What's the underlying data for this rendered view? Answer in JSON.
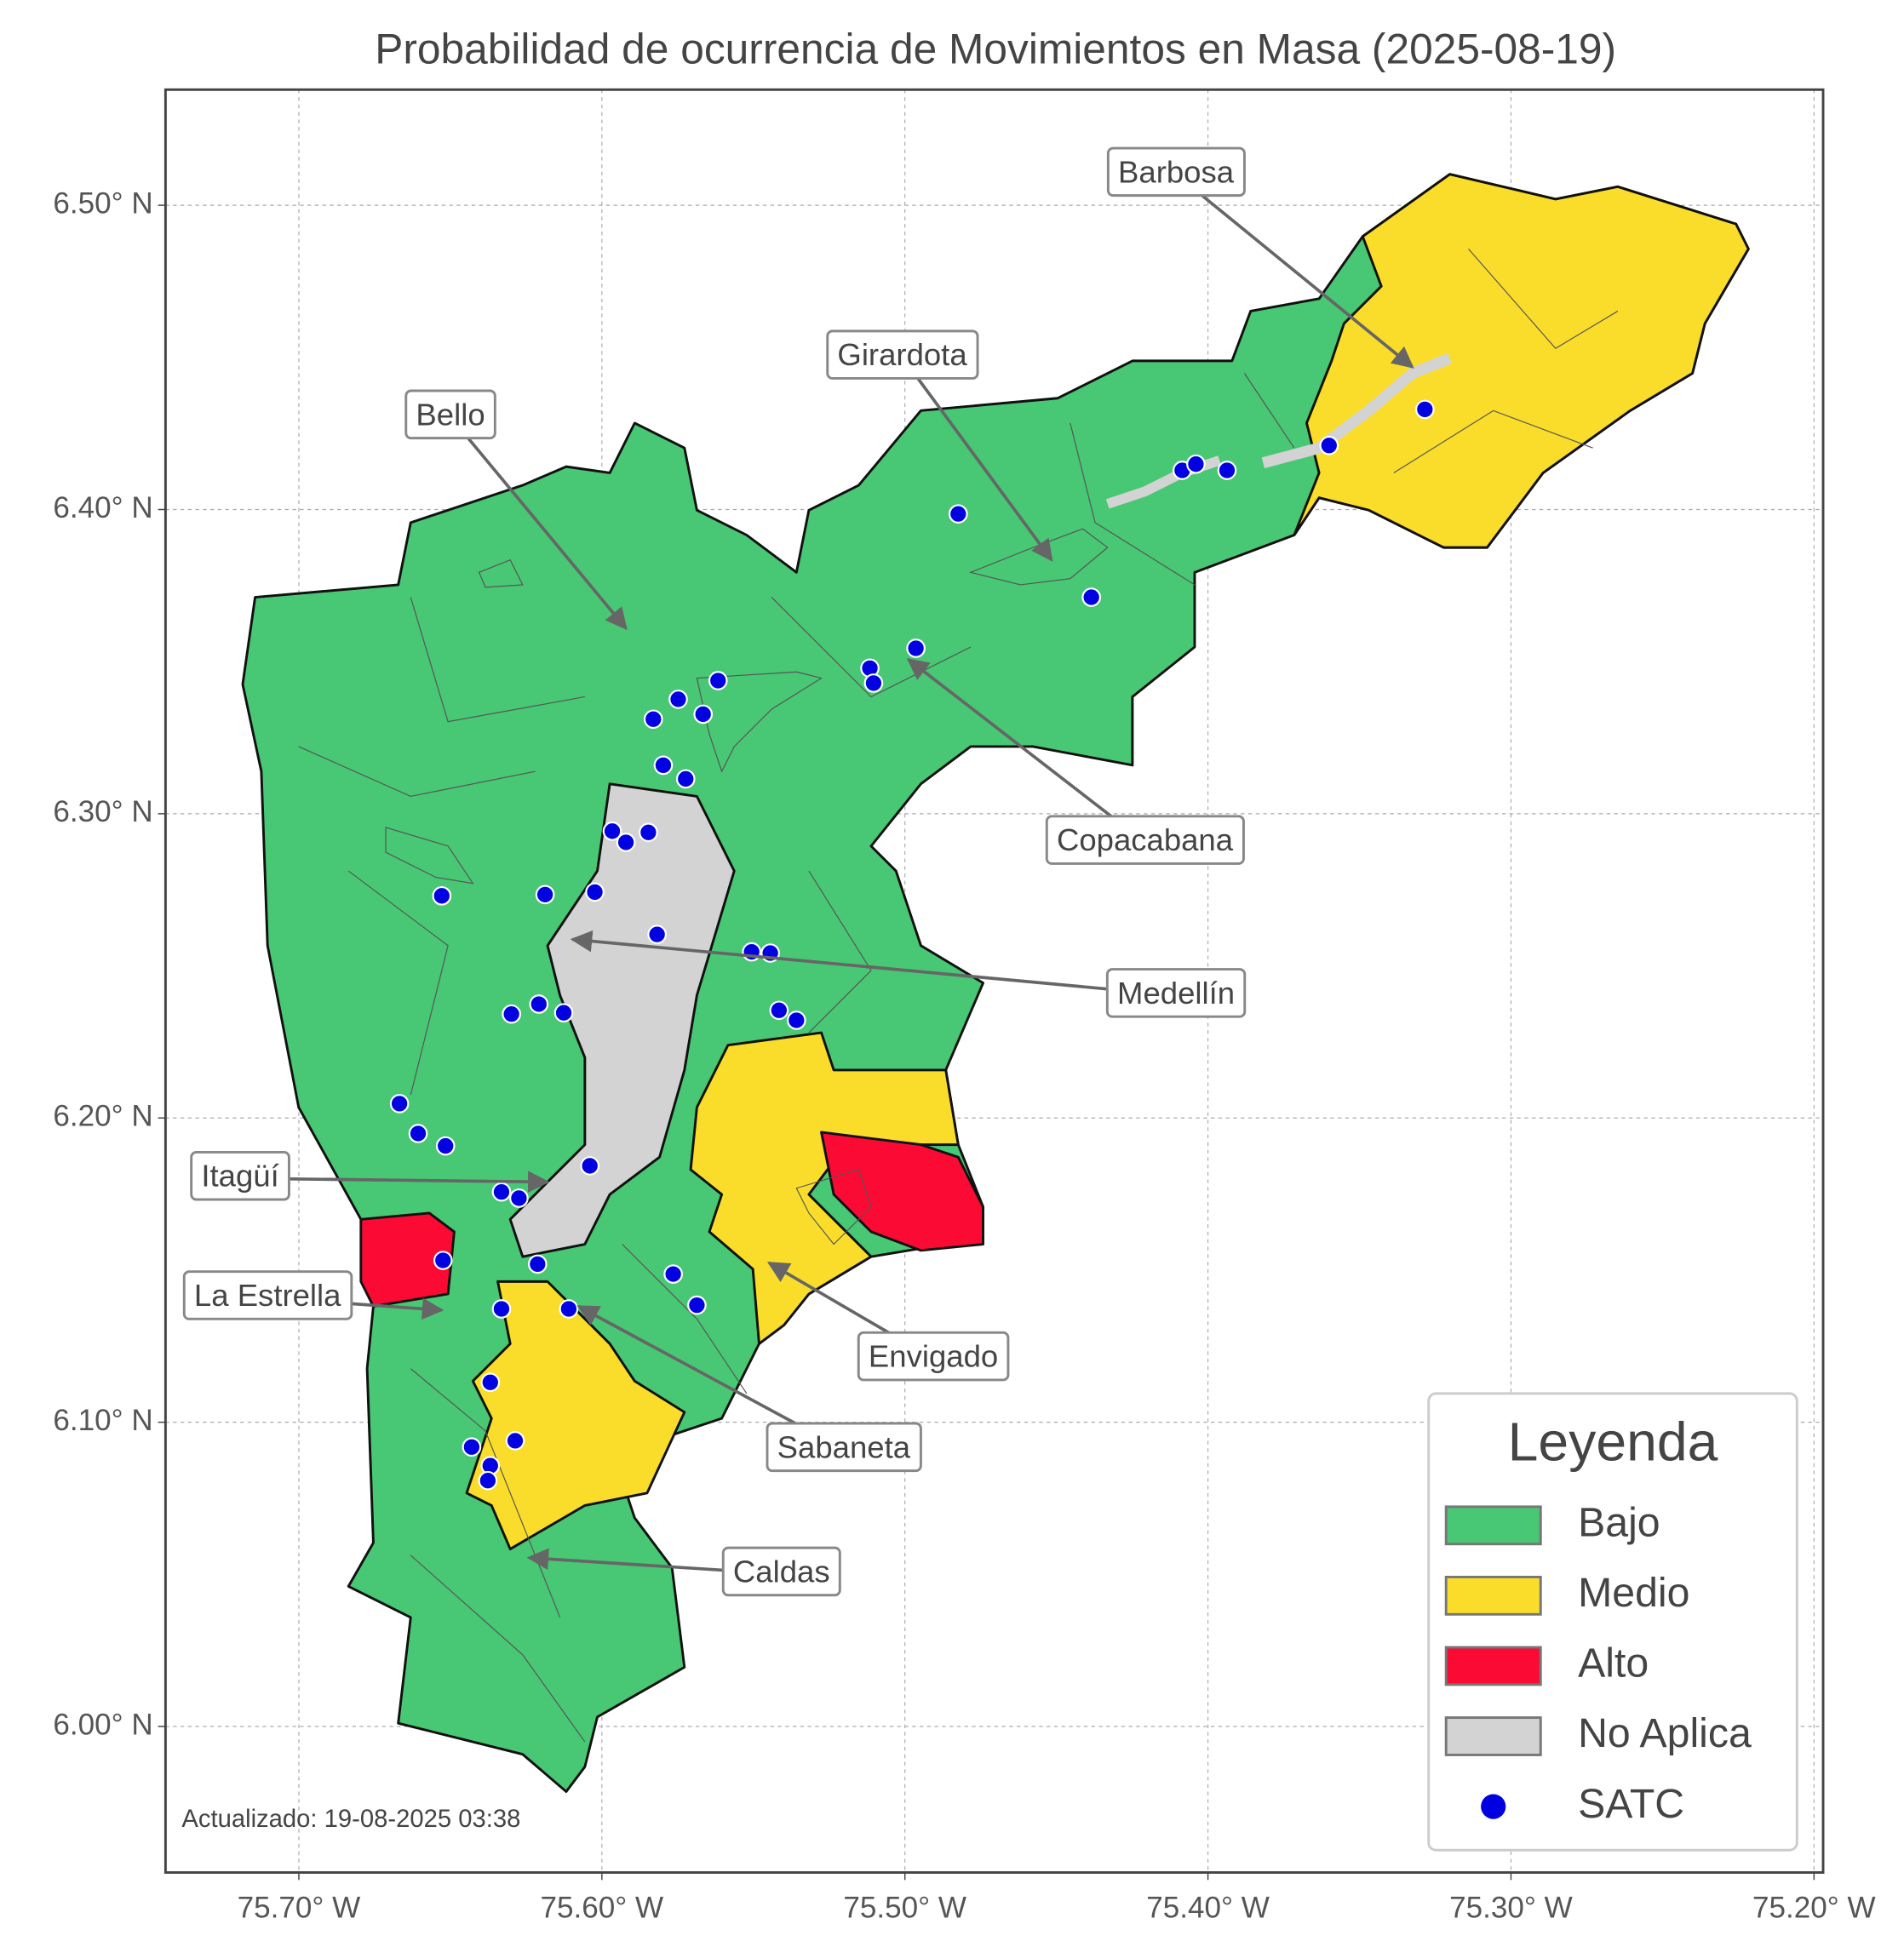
{
  "chart_data": {
    "type": "map",
    "title": "Probabilidad de ocurrencia de Movimientos en Masa (2025-08-19)",
    "xlim": [
      -75.744,
      -75.197
    ],
    "ylim": [
      5.952,
      6.538
    ],
    "xticks": [
      {
        "value": -75.7,
        "label": "75.70° W"
      },
      {
        "value": -75.6,
        "label": "75.60° W"
      },
      {
        "value": -75.5,
        "label": "75.50° W"
      },
      {
        "value": -75.4,
        "label": "75.40° W"
      },
      {
        "value": -75.3,
        "label": "75.30° W"
      },
      {
        "value": -75.2,
        "label": "75.20° W"
      }
    ],
    "yticks": [
      {
        "value": 6.0,
        "label": "6.00° N"
      },
      {
        "value": 6.1,
        "label": "6.10° N"
      },
      {
        "value": 6.2,
        "label": "6.20° N"
      },
      {
        "value": 6.3,
        "label": "6.30° N"
      },
      {
        "value": 6.4,
        "label": "6.40° N"
      },
      {
        "value": 6.5,
        "label": "6.50° N"
      }
    ],
    "grid": true,
    "legend": {
      "title": "Leyenda",
      "position": "lower right",
      "items": [
        {
          "name": "Bajo",
          "color": "#48c774"
        },
        {
          "name": "Medio",
          "color": "#fadd2a"
        },
        {
          "name": "Alto",
          "color": "#fb0a34"
        },
        {
          "name": "No Aplica",
          "color": "#d3d3d3"
        },
        {
          "name": "SATC",
          "color": "#0000e0"
        }
      ]
    },
    "annotations": [
      "Barbosa",
      "Girardota",
      "Bello",
      "Copacabana",
      "Medellín",
      "Itagüí",
      "La Estrella",
      "Envigado",
      "Sabaneta",
      "Caldas"
    ],
    "note": "Actualizado: 19-08-2025 03:38"
  }
}
